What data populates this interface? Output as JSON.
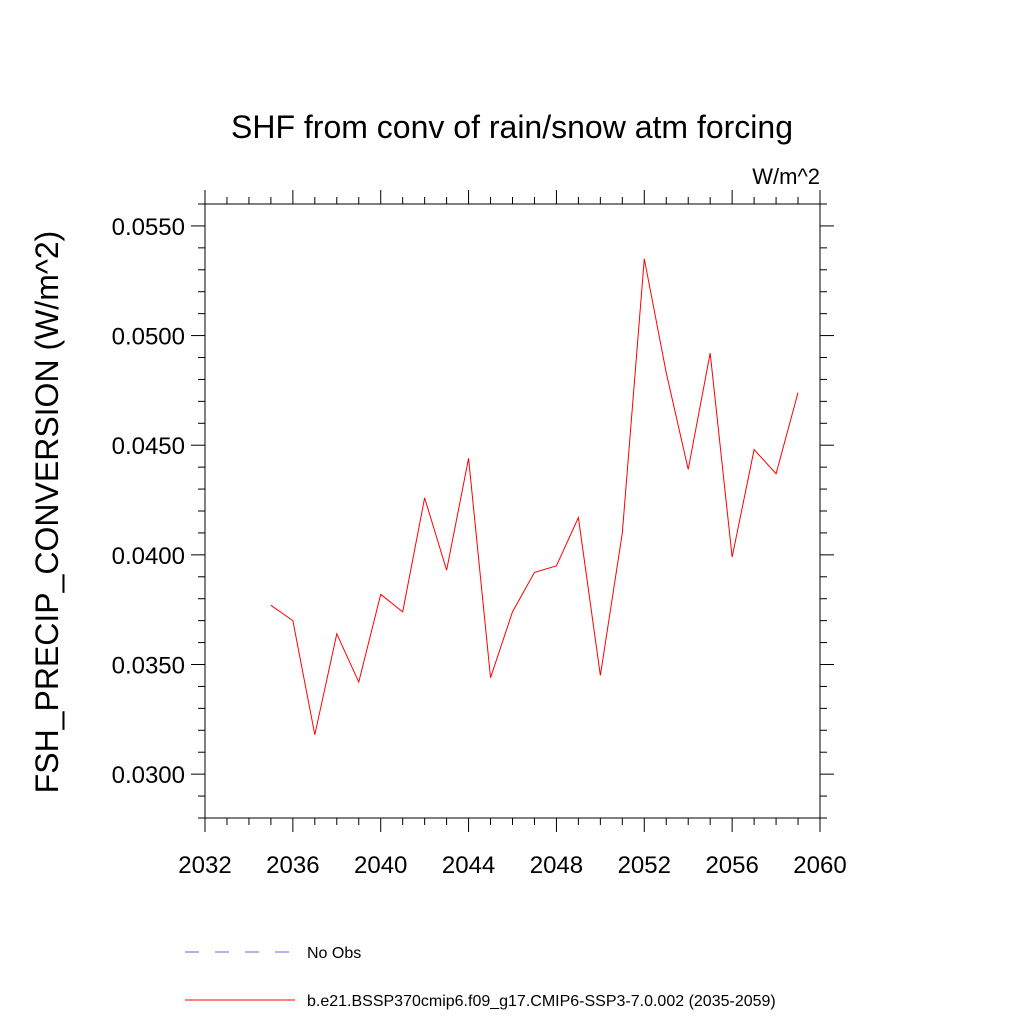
{
  "chart_data": {
    "type": "line",
    "title": "SHF from conv of rain/snow atm forcing",
    "units_label": "W/m^2",
    "xlabel": "",
    "ylabel": "FSH_PRECIP_CONVERSION  (W/m^2)",
    "xlim": [
      2032,
      2060
    ],
    "ylim": [
      0.028,
      0.056
    ],
    "x_ticks": [
      2032,
      2036,
      2040,
      2044,
      2048,
      2052,
      2056,
      2060
    ],
    "x_tick_labels": [
      "2032",
      "2036",
      "2040",
      "2044",
      "2048",
      "2052",
      "2056",
      "2060"
    ],
    "y_ticks": [
      0.03,
      0.035,
      0.04,
      0.045,
      0.05,
      0.055
    ],
    "y_tick_labels": [
      "0.0300",
      "0.0350",
      "0.0400",
      "0.0450",
      "0.0500",
      "0.0550"
    ],
    "grid": false,
    "legend_position": "bottom",
    "series": [
      {
        "name": "No Obs",
        "color": "#6b6bd6",
        "dash": true,
        "x": [],
        "y": []
      },
      {
        "name": "b.e21.BSSP370cmip6.f09_g17.CMIP6-SSP3-7.0.002 (2035-2059)",
        "color": "#ff0000",
        "dash": false,
        "x": [
          2035,
          2036,
          2037,
          2038,
          2039,
          2040,
          2041,
          2042,
          2043,
          2044,
          2045,
          2046,
          2047,
          2048,
          2049,
          2050,
          2051,
          2052,
          2053,
          2054,
          2055,
          2056,
          2057,
          2058,
          2059
        ],
        "y": [
          0.0377,
          0.037,
          0.0318,
          0.0364,
          0.0342,
          0.0382,
          0.0374,
          0.0426,
          0.0393,
          0.0444,
          0.0344,
          0.0374,
          0.0392,
          0.0395,
          0.0417,
          0.0345,
          0.041,
          0.0535,
          0.0483,
          0.0439,
          0.0492,
          0.0399,
          0.0448,
          0.0437,
          0.0474
        ]
      }
    ]
  }
}
